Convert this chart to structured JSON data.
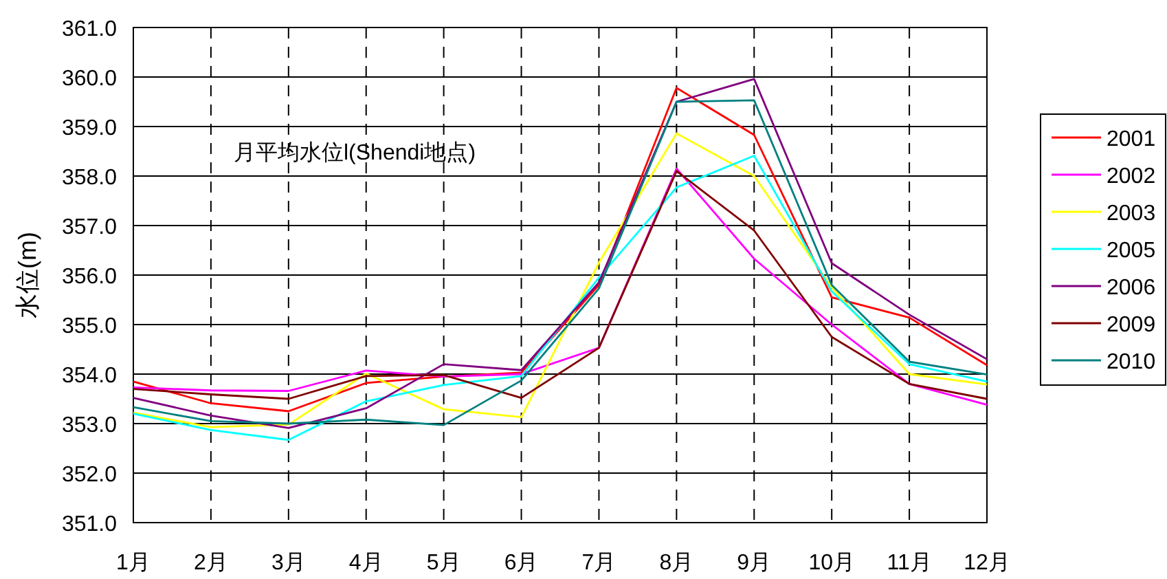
{
  "chart_data": {
    "type": "line",
    "ylabel": "水位(m)",
    "annotations": [
      "月平均水位l(Shendi地点)"
    ],
    "categories": [
      "1月",
      "2月",
      "3月",
      "4月",
      "5月",
      "6月",
      "7月",
      "8月",
      "9月",
      "10月",
      "11月",
      "12月"
    ],
    "ylim": [
      351,
      361
    ],
    "yticks": [
      {
        "value": 351,
        "label": "351.0"
      },
      {
        "value": 352,
        "label": "352.0"
      },
      {
        "value": 353,
        "label": "353.0"
      },
      {
        "value": 354,
        "label": "354.0"
      },
      {
        "value": 355,
        "label": "355.0"
      },
      {
        "value": 356,
        "label": "356.0"
      },
      {
        "value": 357,
        "label": "357.0"
      },
      {
        "value": 358,
        "label": "358.0"
      },
      {
        "value": 359,
        "label": "359.0"
      },
      {
        "value": 360,
        "label": "360.0"
      },
      {
        "value": 361,
        "label": "361.0"
      }
    ],
    "grid": true,
    "legend": "right",
    "marker": "none",
    "line_style": "solid",
    "series": [
      {
        "name": "2001",
        "color": "#ff0000",
        "values": [
          353.85,
          353.41,
          353.25,
          353.82,
          353.95,
          354.03,
          355.8,
          359.78,
          358.83,
          355.55,
          355.14,
          354.18
        ]
      },
      {
        "name": "2002",
        "color": "#ff00ff",
        "values": [
          353.73,
          353.67,
          353.66,
          354.07,
          353.95,
          354.0,
          354.53,
          358.15,
          356.33,
          355.0,
          353.8,
          353.38
        ]
      },
      {
        "name": "2003",
        "color": "#ffff00",
        "values": [
          353.22,
          352.93,
          352.98,
          354.01,
          353.29,
          353.13,
          356.25,
          358.86,
          358.0,
          355.75,
          354.0,
          353.79
        ]
      },
      {
        "name": "2005",
        "color": "#00ffff",
        "values": [
          353.2,
          352.87,
          352.67,
          353.45,
          353.78,
          353.96,
          355.95,
          357.77,
          358.41,
          355.67,
          354.2,
          353.85
        ]
      },
      {
        "name": "2006",
        "color": "#800080",
        "values": [
          353.52,
          353.16,
          352.91,
          353.31,
          354.2,
          354.08,
          355.85,
          359.5,
          359.96,
          356.24,
          355.2,
          354.3
        ]
      },
      {
        "name": "2009",
        "color": "#800000",
        "values": [
          353.7,
          353.59,
          353.5,
          353.96,
          353.98,
          353.52,
          354.53,
          358.1,
          356.9,
          354.75,
          353.8,
          353.5
        ]
      },
      {
        "name": "2010",
        "color": "#008080",
        "values": [
          353.33,
          353.05,
          353.0,
          353.08,
          352.97,
          353.87,
          355.73,
          359.5,
          359.53,
          355.8,
          354.25,
          353.99
        ]
      }
    ]
  }
}
